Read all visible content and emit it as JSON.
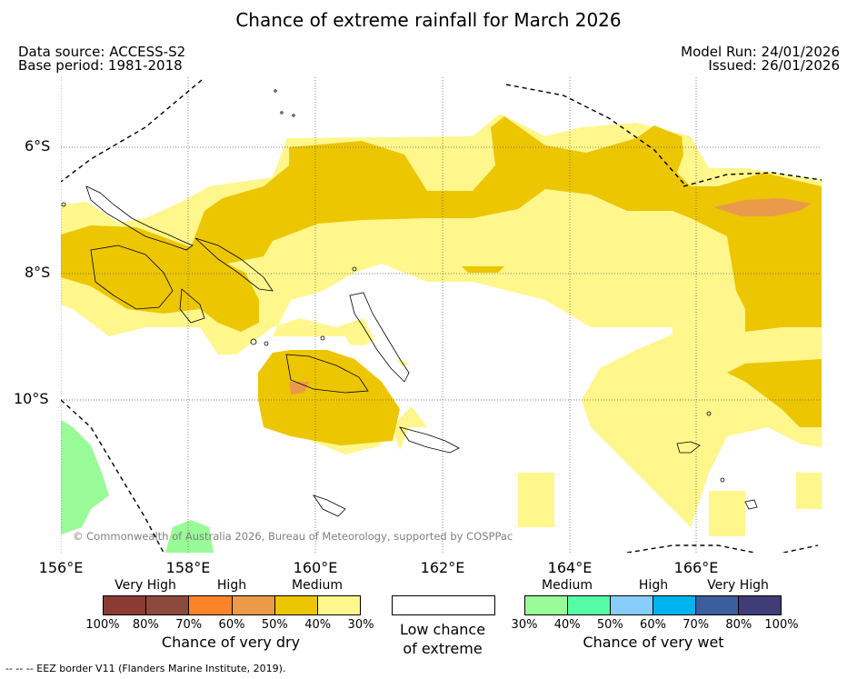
{
  "title": "Chance of extreme rainfall for March 2026",
  "header": {
    "data_source": "Data source: ACCESS-S2",
    "base_period": "Base period: 1981-2018",
    "model_run": "Model Run: 24/01/2026",
    "issued": "Issued: 26/01/2026"
  },
  "map": {
    "lat_labels": [
      "6°S",
      "8°S",
      "10°S"
    ],
    "lon_labels": [
      "156°E",
      "158°E",
      "160°E",
      "162°E",
      "164°E",
      "166°E"
    ],
    "credit": "© Commonwealth of Australia 2026, Bureau of Meteorology, supported by COSPPac"
  },
  "legend": {
    "dry": {
      "categories": [
        "Very High",
        "High",
        "Medium"
      ],
      "ticks": [
        "100%",
        "80%",
        "70%",
        "60%",
        "50%",
        "40%",
        "30%"
      ],
      "colors": [
        "#8b3a34",
        "#8c4a3c",
        "#fb8328",
        "#eb9a4a",
        "#ecc600",
        "#fff68c"
      ],
      "title": "Chance of very dry"
    },
    "low": {
      "title_line1": "Low chance",
      "title_line2": "of extreme",
      "color": "#ffffff"
    },
    "wet": {
      "categories": [
        "Medium",
        "High",
        "Very High"
      ],
      "ticks": [
        "30%",
        "40%",
        "50%",
        "60%",
        "70%",
        "80%",
        "100%"
      ],
      "colors": [
        "#98fb98",
        "#56fca5",
        "#87cdf9",
        "#00b2ee",
        "#3a5e9e",
        "#3f3c78"
      ],
      "title": "Chance of very wet"
    }
  },
  "footnote": "--  --  -- EEZ border V11 (Flanders Marine Institute, 2019)."
}
